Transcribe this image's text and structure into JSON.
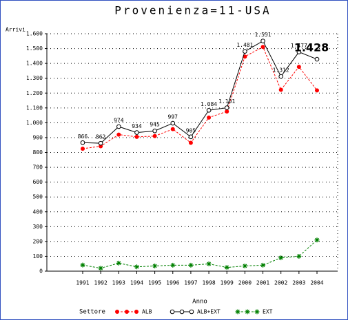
{
  "chart_data": {
    "type": "line",
    "title": "Provenienza=11-USA",
    "ylabel": "Arrivi",
    "xlabel": "Anno",
    "legend_title": "Settore",
    "categories": [
      "1991",
      "1992",
      "1993",
      "1994",
      "1995",
      "1996",
      "1997",
      "1998",
      "1999",
      "2000",
      "2001",
      "2002",
      "2003",
      "2004"
    ],
    "series": [
      {
        "name": "ALB",
        "color": "#ff0000",
        "marker": "dot",
        "dashed": true,
        "values": [
          825,
          842,
          920,
          905,
          910,
          957,
          865,
          1035,
          1076,
          1446,
          1511,
          1222,
          1377,
          1218
        ]
      },
      {
        "name": "ALB+EXT",
        "color": "#000000",
        "marker": "circle",
        "dashed": false,
        "values": [
          866,
          862,
          974,
          934,
          945,
          997,
          905,
          1084,
          1101,
          1481,
          1551,
          1312,
          1477,
          1428
        ],
        "value_labels": [
          "866",
          "862",
          "974",
          "934",
          "945",
          "997",
          "905",
          "1.084",
          "1.101",
          "1.481",
          "1.551",
          "1.312",
          "1.477",
          "1.428"
        ]
      },
      {
        "name": "EXT",
        "color": "#008000",
        "marker": "star",
        "dashed": true,
        "values": [
          41,
          20,
          54,
          29,
          35,
          40,
          40,
          49,
          25,
          35,
          40,
          90,
          100,
          210
        ]
      }
    ],
    "ylim": [
      0,
      1600
    ],
    "yticks": [
      0,
      100,
      200,
      300,
      400,
      500,
      600,
      700,
      800,
      900,
      {
        "value": 1000,
        "label": "1.000"
      },
      {
        "value": 1100,
        "label": "1.100"
      },
      {
        "value": 1200,
        "label": "1.200"
      },
      {
        "value": 1300,
        "label": "1.300"
      },
      {
        "value": 1400,
        "label": "1.400"
      },
      {
        "value": 1500,
        "label": "1.500"
      },
      {
        "value": 1600,
        "label": "1.600"
      }
    ],
    "grid": true
  }
}
